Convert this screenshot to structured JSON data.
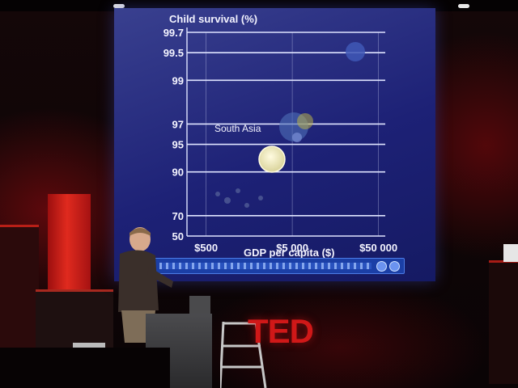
{
  "screen": {
    "y_title": "Child survival (%)",
    "x_title": "GDP per capita ($)",
    "y_ticks": [
      {
        "label": "99.7",
        "value": 99.7
      },
      {
        "label": "99.5",
        "value": 99.5
      },
      {
        "label": "99",
        "value": 99
      },
      {
        "label": "97",
        "value": 97
      },
      {
        "label": "95",
        "value": 95
      },
      {
        "label": "90",
        "value": 90
      },
      {
        "label": "70",
        "value": 70
      },
      {
        "label": "50",
        "value": 50
      }
    ],
    "x_ticks": [
      {
        "label": "$500",
        "value": 500
      },
      {
        "label": "$5 000",
        "value": 5000
      },
      {
        "label": "$50 000",
        "value": 50000
      }
    ],
    "region_label": "South Asia",
    "colors": {
      "screen_bg": "#1d2176",
      "gridline": "#dfe4ff",
      "bubble_main": "#f7f3c8",
      "accent_red": "#d01818"
    }
  },
  "stage": {
    "logo_text": "TED"
  }
}
